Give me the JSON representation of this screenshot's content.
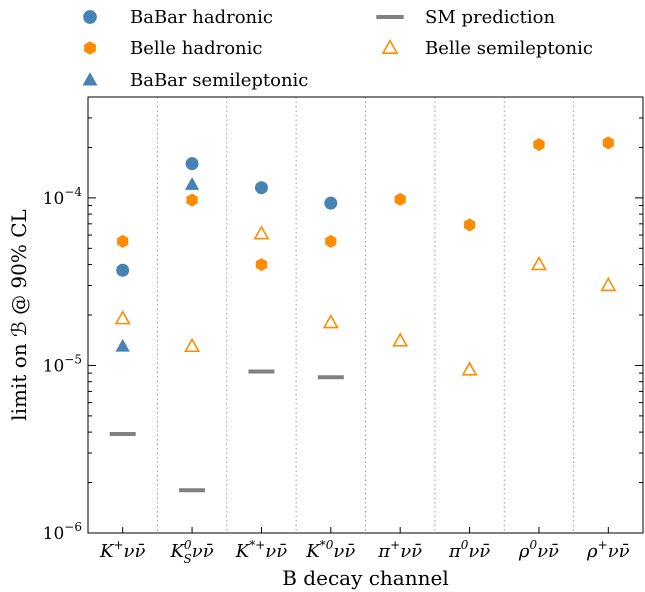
{
  "chart_data": {
    "type": "scatter",
    "xlabel": "B decay channel",
    "ylabel": "limit on ℬ @ 90% CL",
    "yscale": "log",
    "ylim": [
      1e-06,
      0.0004
    ],
    "grid": "vertical dotted separators between channels",
    "legend_position": "top, outside plot, two columns",
    "categories": [
      {
        "base": "K",
        "sup": "+",
        "sub": ""
      },
      {
        "base": "K",
        "sup": "0",
        "sub": "S"
      },
      {
        "base": "K",
        "sup": "*+",
        "sub": ""
      },
      {
        "base": "K",
        "sup": "*0",
        "sub": ""
      },
      {
        "base": "π",
        "sup": "+",
        "sub": ""
      },
      {
        "base": "π",
        "sup": "0",
        "sub": ""
      },
      {
        "base": "ρ",
        "sup": "0",
        "sub": ""
      },
      {
        "base": "ρ",
        "sup": "+",
        "sub": ""
      }
    ],
    "category_suffix": "νν̄",
    "yticks": [
      {
        "value": 1e-06,
        "label": "10",
        "exp": "−6"
      },
      {
        "value": 1e-05,
        "label": "10",
        "exp": "−5"
      },
      {
        "value": 0.0001,
        "label": "10",
        "exp": "−4"
      }
    ],
    "series": [
      {
        "name": "BaBar hadronic",
        "marker": "circle",
        "color": "#4682b4",
        "values": [
          3.7e-05,
          0.00016,
          0.000115,
          9.3e-05,
          null,
          null,
          null,
          null
        ]
      },
      {
        "name": "Belle hadronic",
        "marker": "hexagon",
        "color": "#ff8c00",
        "values": [
          5.5e-05,
          9.7e-05,
          4e-05,
          5.5e-05,
          9.8e-05,
          6.9e-05,
          0.000208,
          0.000213
        ]
      },
      {
        "name": "BaBar semileptonic",
        "marker": "triangle",
        "color": "#4682b4",
        "values": [
          1.3e-05,
          0.00012,
          null,
          null,
          null,
          null,
          null,
          null
        ]
      },
      {
        "name": "SM prediction",
        "marker": "bar",
        "color": "#808080",
        "values": [
          3.9e-06,
          1.8e-06,
          9.2e-06,
          8.5e-06,
          null,
          null,
          null,
          null
        ]
      },
      {
        "name": "Belle semileptonic",
        "marker": "open-triangle",
        "color": "#ff8c00",
        "values": [
          1.9e-05,
          1.3e-05,
          6.1e-05,
          1.8e-05,
          1.4e-05,
          9.4e-06,
          4e-05,
          3e-05
        ]
      }
    ],
    "legend_order": [
      0,
      3,
      1,
      4,
      2
    ]
  }
}
